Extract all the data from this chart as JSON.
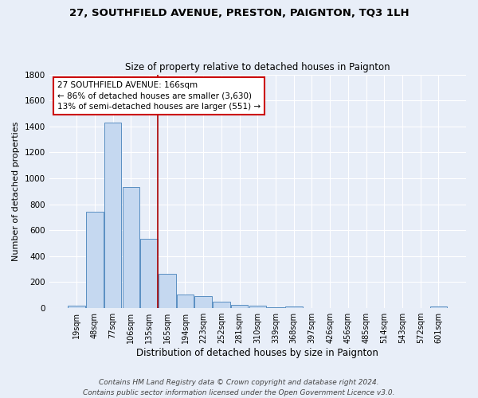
{
  "title": "27, SOUTHFIELD AVENUE, PRESTON, PAIGNTON, TQ3 1LH",
  "subtitle": "Size of property relative to detached houses in Paignton",
  "xlabel": "Distribution of detached houses by size in Paignton",
  "ylabel": "Number of detached properties",
  "categories": [
    "19sqm",
    "48sqm",
    "77sqm",
    "106sqm",
    "135sqm",
    "165sqm",
    "194sqm",
    "223sqm",
    "252sqm",
    "281sqm",
    "310sqm",
    "339sqm",
    "368sqm",
    "397sqm",
    "426sqm",
    "456sqm",
    "485sqm",
    "514sqm",
    "543sqm",
    "572sqm",
    "601sqm"
  ],
  "values": [
    20,
    740,
    1430,
    935,
    535,
    265,
    105,
    90,
    50,
    28,
    20,
    5,
    15,
    3,
    3,
    3,
    2,
    0,
    2,
    0,
    15
  ],
  "bar_color": "#c5d8f0",
  "bar_edge_color": "#5a8fc2",
  "vline_color": "#aa0000",
  "vline_x": 4.5,
  "annotation_text": "27 SOUTHFIELD AVENUE: 166sqm\n← 86% of detached houses are smaller (3,630)\n13% of semi-detached houses are larger (551) →",
  "annotation_box_color": "#ffffff",
  "annotation_box_edge": "#cc0000",
  "footer": "Contains HM Land Registry data © Crown copyright and database right 2024.\nContains public sector information licensed under the Open Government Licence v3.0.",
  "ylim": [
    0,
    1800
  ],
  "bg_color": "#e8eef8",
  "grid_color": "#ffffff",
  "title_fontsize": 9.5,
  "subtitle_fontsize": 8.5,
  "ylabel_fontsize": 8.0,
  "xlabel_fontsize": 8.5,
  "tick_fontsize": 7.0,
  "footer_fontsize": 6.5,
  "annot_fontsize": 7.5
}
